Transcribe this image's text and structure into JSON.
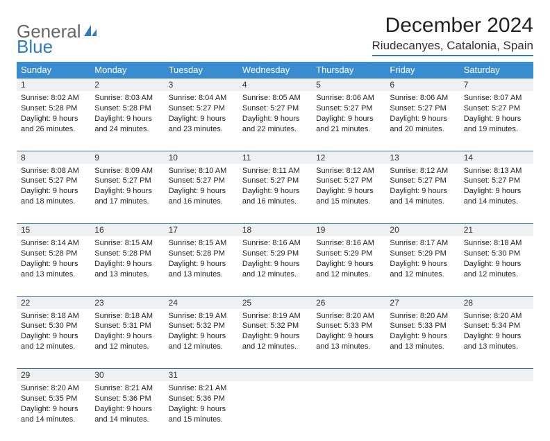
{
  "brand": {
    "part1": "General",
    "part2": "Blue"
  },
  "title": "December 2024",
  "location": "Riudecanyes, Catalonia, Spain",
  "colors": {
    "header_bg": "#3a8cd1",
    "rule": "#2f6fa8",
    "daynum_bg": "#eef0f1",
    "brand_blue": "#2f7bbf"
  },
  "weekdays": [
    "Sunday",
    "Monday",
    "Tuesday",
    "Wednesday",
    "Thursday",
    "Friday",
    "Saturday"
  ],
  "weeks": [
    [
      {
        "n": "1",
        "sr": "8:02 AM",
        "ss": "5:28 PM",
        "dl": "9 hours and 26 minutes."
      },
      {
        "n": "2",
        "sr": "8:03 AM",
        "ss": "5:28 PM",
        "dl": "9 hours and 24 minutes."
      },
      {
        "n": "3",
        "sr": "8:04 AM",
        "ss": "5:27 PM",
        "dl": "9 hours and 23 minutes."
      },
      {
        "n": "4",
        "sr": "8:05 AM",
        "ss": "5:27 PM",
        "dl": "9 hours and 22 minutes."
      },
      {
        "n": "5",
        "sr": "8:06 AM",
        "ss": "5:27 PM",
        "dl": "9 hours and 21 minutes."
      },
      {
        "n": "6",
        "sr": "8:06 AM",
        "ss": "5:27 PM",
        "dl": "9 hours and 20 minutes."
      },
      {
        "n": "7",
        "sr": "8:07 AM",
        "ss": "5:27 PM",
        "dl": "9 hours and 19 minutes."
      }
    ],
    [
      {
        "n": "8",
        "sr": "8:08 AM",
        "ss": "5:27 PM",
        "dl": "9 hours and 18 minutes."
      },
      {
        "n": "9",
        "sr": "8:09 AM",
        "ss": "5:27 PM",
        "dl": "9 hours and 17 minutes."
      },
      {
        "n": "10",
        "sr": "8:10 AM",
        "ss": "5:27 PM",
        "dl": "9 hours and 16 minutes."
      },
      {
        "n": "11",
        "sr": "8:11 AM",
        "ss": "5:27 PM",
        "dl": "9 hours and 16 minutes."
      },
      {
        "n": "12",
        "sr": "8:12 AM",
        "ss": "5:27 PM",
        "dl": "9 hours and 15 minutes."
      },
      {
        "n": "13",
        "sr": "8:12 AM",
        "ss": "5:27 PM",
        "dl": "9 hours and 14 minutes."
      },
      {
        "n": "14",
        "sr": "8:13 AM",
        "ss": "5:27 PM",
        "dl": "9 hours and 14 minutes."
      }
    ],
    [
      {
        "n": "15",
        "sr": "8:14 AM",
        "ss": "5:28 PM",
        "dl": "9 hours and 13 minutes."
      },
      {
        "n": "16",
        "sr": "8:15 AM",
        "ss": "5:28 PM",
        "dl": "9 hours and 13 minutes."
      },
      {
        "n": "17",
        "sr": "8:15 AM",
        "ss": "5:28 PM",
        "dl": "9 hours and 13 minutes."
      },
      {
        "n": "18",
        "sr": "8:16 AM",
        "ss": "5:29 PM",
        "dl": "9 hours and 12 minutes."
      },
      {
        "n": "19",
        "sr": "8:16 AM",
        "ss": "5:29 PM",
        "dl": "9 hours and 12 minutes."
      },
      {
        "n": "20",
        "sr": "8:17 AM",
        "ss": "5:29 PM",
        "dl": "9 hours and 12 minutes."
      },
      {
        "n": "21",
        "sr": "8:18 AM",
        "ss": "5:30 PM",
        "dl": "9 hours and 12 minutes."
      }
    ],
    [
      {
        "n": "22",
        "sr": "8:18 AM",
        "ss": "5:30 PM",
        "dl": "9 hours and 12 minutes."
      },
      {
        "n": "23",
        "sr": "8:18 AM",
        "ss": "5:31 PM",
        "dl": "9 hours and 12 minutes."
      },
      {
        "n": "24",
        "sr": "8:19 AM",
        "ss": "5:32 PM",
        "dl": "9 hours and 12 minutes."
      },
      {
        "n": "25",
        "sr": "8:19 AM",
        "ss": "5:32 PM",
        "dl": "9 hours and 12 minutes."
      },
      {
        "n": "26",
        "sr": "8:20 AM",
        "ss": "5:33 PM",
        "dl": "9 hours and 13 minutes."
      },
      {
        "n": "27",
        "sr": "8:20 AM",
        "ss": "5:33 PM",
        "dl": "9 hours and 13 minutes."
      },
      {
        "n": "28",
        "sr": "8:20 AM",
        "ss": "5:34 PM",
        "dl": "9 hours and 13 minutes."
      }
    ],
    [
      {
        "n": "29",
        "sr": "8:20 AM",
        "ss": "5:35 PM",
        "dl": "9 hours and 14 minutes."
      },
      {
        "n": "30",
        "sr": "8:21 AM",
        "ss": "5:36 PM",
        "dl": "9 hours and 14 minutes."
      },
      {
        "n": "31",
        "sr": "8:21 AM",
        "ss": "5:36 PM",
        "dl": "9 hours and 15 minutes."
      },
      null,
      null,
      null,
      null
    ]
  ],
  "labels": {
    "sunrise": "Sunrise:",
    "sunset": "Sunset:",
    "daylight": "Daylight:"
  }
}
